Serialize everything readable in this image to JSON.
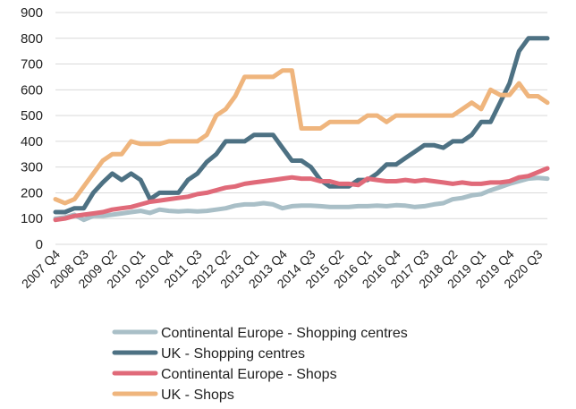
{
  "chart_data": {
    "type": "line",
    "xlabel": "",
    "ylabel": "",
    "ylim": [
      0,
      900
    ],
    "yticks": [
      0,
      100,
      200,
      300,
      400,
      500,
      600,
      700,
      800,
      900
    ],
    "grid": true,
    "legend_position": "bottom",
    "x_tick_labels": [
      "2007 Q4",
      "2008 Q3",
      "2009 Q2",
      "2010 Q1",
      "2010 Q4",
      "2011 Q3",
      "2012 Q2",
      "2013 Q1",
      "2013 Q4",
      "2014 Q3",
      "2015 Q2",
      "2016 Q1",
      "2016 Q4",
      "2017 Q3",
      "2018 Q2",
      "2019 Q1",
      "2019 Q4",
      "2020 Q3"
    ],
    "x": [
      "2007 Q4",
      "2008 Q1",
      "2008 Q2",
      "2008 Q3",
      "2008 Q4",
      "2009 Q1",
      "2009 Q2",
      "2009 Q3",
      "2009 Q4",
      "2010 Q1",
      "2010 Q2",
      "2010 Q3",
      "2010 Q4",
      "2011 Q1",
      "2011 Q2",
      "2011 Q3",
      "2011 Q4",
      "2012 Q1",
      "2012 Q2",
      "2012 Q3",
      "2012 Q4",
      "2013 Q1",
      "2013 Q2",
      "2013 Q3",
      "2013 Q4",
      "2014 Q1",
      "2014 Q2",
      "2014 Q3",
      "2014 Q4",
      "2015 Q1",
      "2015 Q2",
      "2015 Q3",
      "2015 Q4",
      "2016 Q1",
      "2016 Q2",
      "2016 Q3",
      "2016 Q4",
      "2017 Q1",
      "2017 Q2",
      "2017 Q3",
      "2017 Q4",
      "2018 Q1",
      "2018 Q2",
      "2018 Q3",
      "2018 Q4",
      "2019 Q1",
      "2019 Q2",
      "2019 Q3",
      "2019 Q4",
      "2020 Q1",
      "2020 Q2",
      "2020 Q3",
      "2020 Q4"
    ],
    "series": [
      {
        "name": "Continental Europe - Shopping centres",
        "color": "#a9bfc7",
        "values": [
          100,
          105,
          115,
          95,
          110,
          110,
          115,
          120,
          125,
          130,
          122,
          135,
          130,
          128,
          130,
          128,
          130,
          135,
          140,
          150,
          155,
          155,
          160,
          155,
          140,
          148,
          150,
          150,
          148,
          145,
          145,
          145,
          148,
          148,
          150,
          148,
          152,
          150,
          145,
          148,
          155,
          160,
          175,
          180,
          190,
          195,
          210,
          222,
          235,
          245,
          255,
          258,
          255
        ]
      },
      {
        "name": "UK - Shopping centres",
        "color": "#4d7183",
        "values": [
          125,
          125,
          140,
          140,
          200,
          240,
          275,
          250,
          275,
          250,
          175,
          200,
          200,
          200,
          250,
          275,
          320,
          350,
          400,
          400,
          400,
          425,
          425,
          425,
          375,
          325,
          325,
          300,
          250,
          225,
          225,
          225,
          250,
          250,
          275,
          310,
          310,
          335,
          360,
          385,
          385,
          375,
          400,
          400,
          425,
          475,
          475,
          550,
          625,
          750,
          800,
          800,
          800
        ]
      },
      {
        "name": "Continental Europe - Shops",
        "color": "#e06a79",
        "values": [
          95,
          100,
          110,
          115,
          120,
          125,
          135,
          140,
          145,
          155,
          165,
          170,
          175,
          180,
          185,
          195,
          200,
          210,
          220,
          225,
          235,
          240,
          245,
          250,
          255,
          260,
          255,
          255,
          245,
          245,
          235,
          235,
          230,
          255,
          250,
          245,
          245,
          250,
          245,
          250,
          245,
          240,
          235,
          240,
          235,
          235,
          240,
          240,
          245,
          260,
          265,
          280,
          295
        ]
      },
      {
        "name": "UK - Shops",
        "color": "#efb57d",
        "values": [
          175,
          160,
          175,
          225,
          275,
          325,
          350,
          350,
          400,
          390,
          390,
          390,
          400,
          400,
          400,
          400,
          425,
          500,
          525,
          575,
          650,
          650,
          650,
          650,
          675,
          675,
          450,
          450,
          450,
          475,
          475,
          475,
          475,
          500,
          500,
          475,
          500,
          500,
          500,
          500,
          500,
          500,
          500,
          525,
          550,
          525,
          600,
          580,
          580,
          625,
          575,
          575,
          550
        ]
      }
    ]
  }
}
